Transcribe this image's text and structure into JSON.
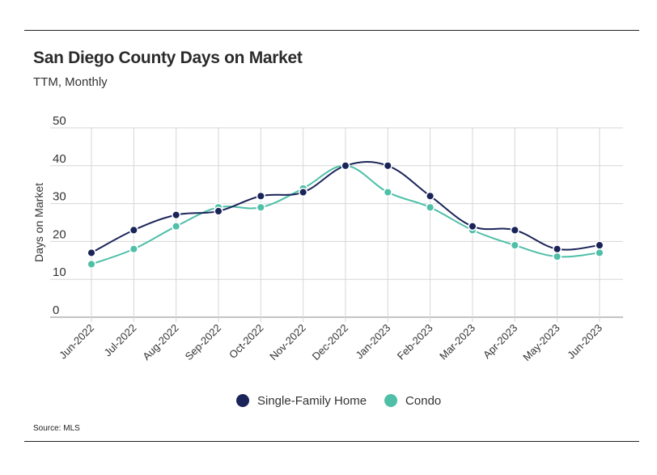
{
  "title": "San Diego County Days on Market",
  "subtitle": "TTM, Monthly",
  "source": "Source:  MLS",
  "colors": {
    "single_family": "#1b2459",
    "condo": "#4fbfa8",
    "grid": "#d6d6d6",
    "text": "#333333"
  },
  "chart_data": {
    "type": "line",
    "categories": [
      "Jun-2022",
      "Jul-2022",
      "Aug-2022",
      "Sep-2022",
      "Oct-2022",
      "Nov-2022",
      "Dec-2022",
      "Jan-2023",
      "Feb-2023",
      "Mar-2023",
      "Apr-2023",
      "May-2023",
      "Jun-2023"
    ],
    "series": [
      {
        "name": "Single-Family Home",
        "values": [
          17,
          23,
          27,
          28,
          32,
          33,
          40,
          40,
          32,
          24,
          23,
          18,
          19
        ]
      },
      {
        "name": "Condo",
        "values": [
          14,
          18,
          24,
          29,
          29,
          34,
          40,
          33,
          29,
          23,
          19,
          16,
          17
        ]
      }
    ],
    "ylabel": "Days on Market",
    "xlabel": "",
    "ylim": [
      0,
      50
    ],
    "yticks": [
      0,
      10,
      20,
      30,
      40,
      50
    ],
    "grid": true,
    "legend": "bottom-center"
  }
}
